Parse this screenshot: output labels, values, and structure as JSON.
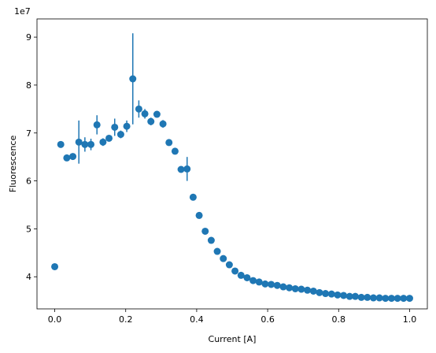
{
  "chart_data": {
    "type": "errorbar",
    "x_label": "Current [A]",
    "y_label": "Fluorescence",
    "y_offset_label": "1e7",
    "color": "#1f77b4",
    "x": [
      0,
      0.017,
      0.034,
      0.051,
      0.068,
      0.085,
      0.102,
      0.119,
      0.136,
      0.153,
      0.169,
      0.186,
      0.203,
      0.22,
      0.237,
      0.254,
      0.271,
      0.288,
      0.305,
      0.322,
      0.339,
      0.356,
      0.373,
      0.39,
      0.407,
      0.424,
      0.441,
      0.458,
      0.475,
      0.492,
      0.508,
      0.525,
      0.542,
      0.559,
      0.576,
      0.593,
      0.61,
      0.627,
      0.644,
      0.661,
      0.678,
      0.695,
      0.712,
      0.729,
      0.746,
      0.763,
      0.78,
      0.797,
      0.814,
      0.831,
      0.847,
      0.864,
      0.881,
      0.898,
      0.915,
      0.932,
      0.949,
      0.966,
      0.983,
      1
    ],
    "values": [
      4.21,
      6.76,
      6.48,
      6.51,
      6.81,
      6.76,
      6.76,
      7.17,
      6.81,
      6.89,
      7.12,
      6.97,
      7.14,
      8.13,
      7.5,
      7.4,
      7.24,
      7.39,
      7.19,
      6.8,
      6.62,
      6.24,
      6.25,
      5.66,
      5.28,
      4.95,
      4.76,
      4.53,
      4.38,
      4.25,
      4.12,
      4.03,
      3.98,
      3.92,
      3.89,
      3.85,
      3.84,
      3.82,
      3.79,
      3.77,
      3.75,
      3.74,
      3.72,
      3.7,
      3.67,
      3.65,
      3.64,
      3.62,
      3.61,
      3.59,
      3.59,
      3.57,
      3.57,
      3.56,
      3.56,
      3.55,
      3.55,
      3.55,
      3.55,
      3.55
    ],
    "errors": [
      0.01,
      0.05,
      0.03,
      0.05,
      0.45,
      0.15,
      0.12,
      0.2,
      0.08,
      0.05,
      0.18,
      0.08,
      0.12,
      0.95,
      0.18,
      0.1,
      0.08,
      0.03,
      0.08,
      0.02,
      0.02,
      0.02,
      0.25,
      0.02,
      0.03,
      0.01,
      0.01,
      0.01,
      0.01,
      0.01,
      0.01,
      0.01,
      0.01,
      0.01,
      0.01,
      0.01,
      0.01,
      0.01,
      0.01,
      0.01,
      0.01,
      0.01,
      0.01,
      0.01,
      0.01,
      0.01,
      0.01,
      0.01,
      0.01,
      0.01,
      0.01,
      0.01,
      0.01,
      0.01,
      0.01,
      0.01,
      0.01,
      0.01,
      0.01,
      0.01
    ],
    "xlim": [
      -0.05,
      1.05
    ],
    "xticks": [
      {
        "value": 0,
        "label": "0.0"
      },
      {
        "value": 0.2,
        "label": "0.2"
      },
      {
        "value": 0.4,
        "label": "0.4"
      },
      {
        "value": 0.6,
        "label": "0.6"
      },
      {
        "value": 0.8,
        "label": "0.8"
      },
      {
        "value": 1,
        "label": "1.0"
      }
    ],
    "ylim": [
      3.33,
      9.38
    ],
    "yticks": [
      4,
      5,
      6,
      7,
      8,
      9
    ]
  }
}
